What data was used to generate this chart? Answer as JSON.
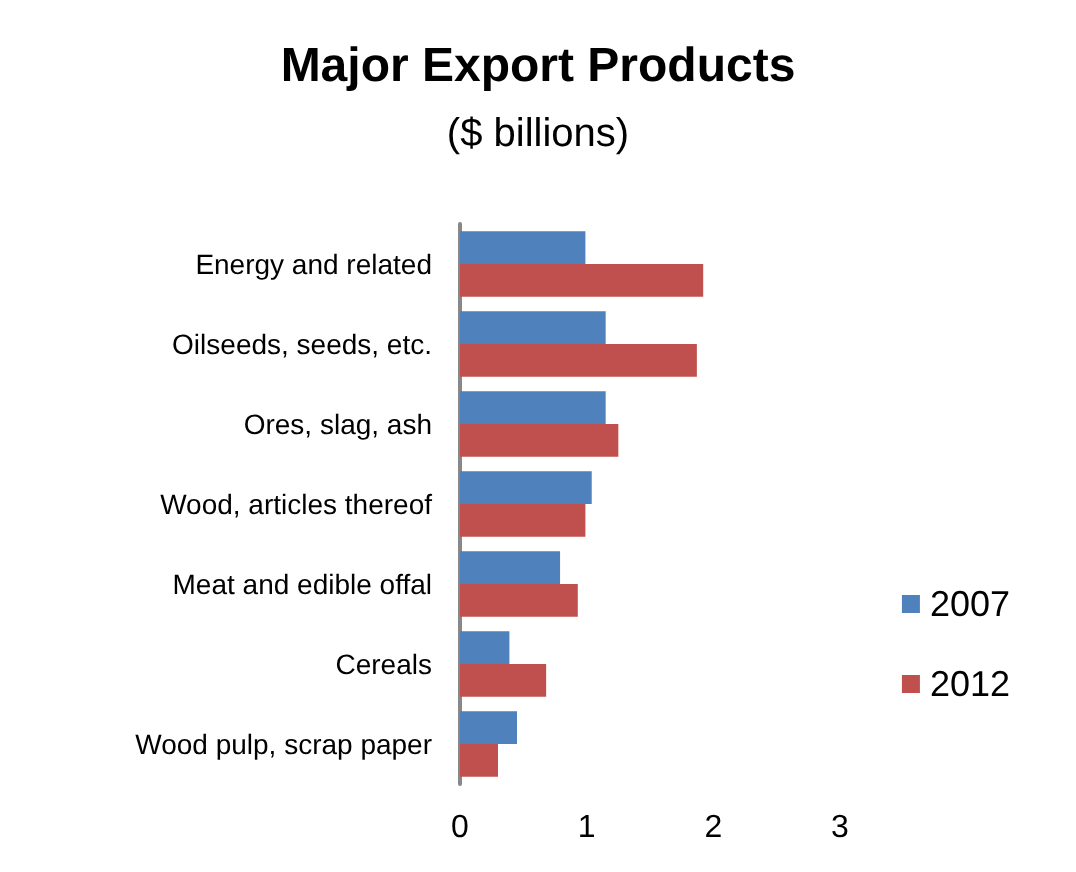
{
  "chart_data": {
    "type": "bar",
    "orientation": "horizontal",
    "title": "Major Export Products",
    "subtitle": "($ billions)",
    "categories": [
      "Energy and related",
      "Oilseeds, seeds, etc.",
      "Ores, slag, ash",
      "Wood, articles thereof",
      "Meat and edible offal",
      "Cereals",
      "Wood pulp, scrap paper"
    ],
    "series": [
      {
        "name": "2007",
        "color": "#4f81bd",
        "values": [
          0.99,
          1.15,
          1.15,
          1.04,
          0.79,
          0.39,
          0.45
        ]
      },
      {
        "name": "2012",
        "color": "#c0504d",
        "values": [
          1.92,
          1.87,
          1.25,
          0.99,
          0.93,
          0.68,
          0.3
        ]
      }
    ],
    "xlim": [
      0,
      3
    ],
    "xticks": [
      0,
      1,
      2,
      3
    ],
    "grid": false,
    "legend": "right"
  }
}
